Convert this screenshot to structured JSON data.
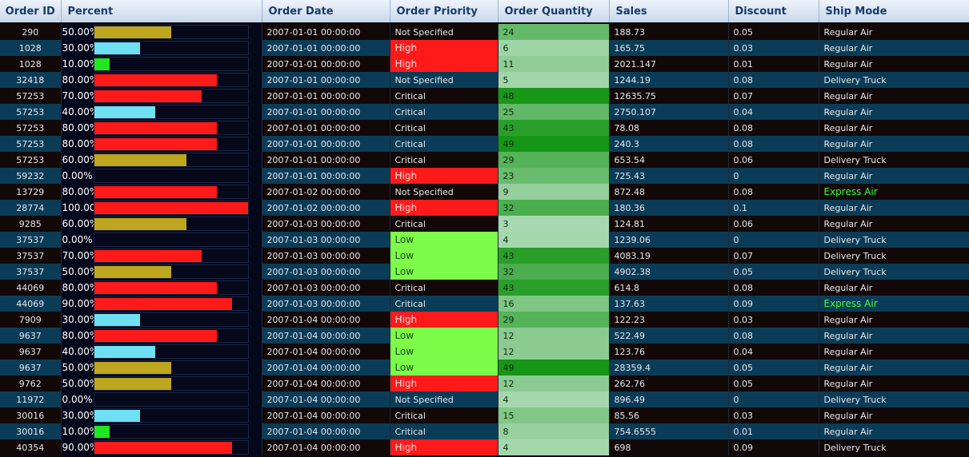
{
  "columns": {
    "order_id": "Order ID",
    "percent": "Percent",
    "order_date": "Order Date",
    "order_priority": "Order Priority",
    "order_quantity": "Order Quantity",
    "sales": "Sales",
    "discount": "Discount",
    "ship_mode": "Ship Mode"
  },
  "bar_colors": {
    "low": "#6ee0f2",
    "green": "#22e622",
    "mid": "#bfa61f",
    "high": "#ff1a1a"
  },
  "priority_colors": {
    "High": "#ff1a1a",
    "Low": "#7cfc48"
  },
  "rows": [
    {
      "id": "290",
      "pct": "50.00%",
      "pct_value": 0.5,
      "date": "2007-01-01 00:00:00",
      "priority": "Not Specified",
      "qty": "24",
      "sales": "188.73",
      "discount": "0.05",
      "ship": "Regular Air"
    },
    {
      "id": "1028",
      "pct": "30.00%",
      "pct_value": 0.3,
      "date": "2007-01-01 00:00:00",
      "priority": "High",
      "qty": "6",
      "sales": "165.75",
      "discount": "0.03",
      "ship": "Regular Air"
    },
    {
      "id": "1028",
      "pct": "10.00%",
      "pct_value": 0.1,
      "date": "2007-01-01 00:00:00",
      "priority": "High",
      "qty": "11",
      "sales": "2021.147",
      "discount": "0.01",
      "ship": "Regular Air"
    },
    {
      "id": "32418",
      "pct": "80.00%",
      "pct_value": 0.8,
      "date": "2007-01-01 00:00:00",
      "priority": "Not Specified",
      "qty": "5",
      "sales": "1244.19",
      "discount": "0.08",
      "ship": "Delivery Truck"
    },
    {
      "id": "57253",
      "pct": "70.00%",
      "pct_value": 0.7,
      "date": "2007-01-01 00:00:00",
      "priority": "Critical",
      "qty": "48",
      "sales": "12635.75",
      "discount": "0.07",
      "ship": "Regular Air"
    },
    {
      "id": "57253",
      "pct": "40.00%",
      "pct_value": 0.4,
      "date": "2007-01-01 00:00:00",
      "priority": "Critical",
      "qty": "25",
      "sales": "2750.107",
      "discount": "0.04",
      "ship": "Regular Air"
    },
    {
      "id": "57253",
      "pct": "80.00%",
      "pct_value": 0.8,
      "date": "2007-01-01 00:00:00",
      "priority": "Critical",
      "qty": "43",
      "sales": "78.08",
      "discount": "0.08",
      "ship": "Regular Air"
    },
    {
      "id": "57253",
      "pct": "80.00%",
      "pct_value": 0.8,
      "date": "2007-01-01 00:00:00",
      "priority": "Critical",
      "qty": "49",
      "sales": "240.3",
      "discount": "0.08",
      "ship": "Regular Air"
    },
    {
      "id": "57253",
      "pct": "60.00%",
      "pct_value": 0.6,
      "date": "2007-01-01 00:00:00",
      "priority": "Critical",
      "qty": "29",
      "sales": "653.54",
      "discount": "0.06",
      "ship": "Delivery Truck"
    },
    {
      "id": "59232",
      "pct": "0.00%",
      "pct_value": 0.0,
      "date": "2007-01-01 00:00:00",
      "priority": "High",
      "qty": "23",
      "sales": "725.43",
      "discount": "0",
      "ship": "Regular Air"
    },
    {
      "id": "13729",
      "pct": "80.00%",
      "pct_value": 0.8,
      "date": "2007-01-02 00:00:00",
      "priority": "Not Specified",
      "qty": "9",
      "sales": "872.48",
      "discount": "0.08",
      "ship": "Express Air"
    },
    {
      "id": "28774",
      "pct": "100.00%",
      "pct_value": 1.0,
      "date": "2007-01-02 00:00:00",
      "priority": "High",
      "qty": "32",
      "sales": "180.36",
      "discount": "0.1",
      "ship": "Regular Air"
    },
    {
      "id": "9285",
      "pct": "60.00%",
      "pct_value": 0.6,
      "date": "2007-01-03 00:00:00",
      "priority": "Critical",
      "qty": "3",
      "sales": "124.81",
      "discount": "0.06",
      "ship": "Regular Air"
    },
    {
      "id": "37537",
      "pct": "0.00%",
      "pct_value": 0.0,
      "date": "2007-01-03 00:00:00",
      "priority": "Low",
      "qty": "4",
      "sales": "1239.06",
      "discount": "0",
      "ship": "Delivery Truck"
    },
    {
      "id": "37537",
      "pct": "70.00%",
      "pct_value": 0.7,
      "date": "2007-01-03 00:00:00",
      "priority": "Low",
      "qty": "43",
      "sales": "4083.19",
      "discount": "0.07",
      "ship": "Delivery Truck"
    },
    {
      "id": "37537",
      "pct": "50.00%",
      "pct_value": 0.5,
      "date": "2007-01-03 00:00:00",
      "priority": "Low",
      "qty": "32",
      "sales": "4902.38",
      "discount": "0.05",
      "ship": "Delivery Truck"
    },
    {
      "id": "44069",
      "pct": "80.00%",
      "pct_value": 0.8,
      "date": "2007-01-03 00:00:00",
      "priority": "Critical",
      "qty": "43",
      "sales": "614.8",
      "discount": "0.08",
      "ship": "Regular Air"
    },
    {
      "id": "44069",
      "pct": "90.00%",
      "pct_value": 0.9,
      "date": "2007-01-03 00:00:00",
      "priority": "Critical",
      "qty": "16",
      "sales": "137.63",
      "discount": "0.09",
      "ship": "Express Air"
    },
    {
      "id": "7909",
      "pct": "30.00%",
      "pct_value": 0.3,
      "date": "2007-01-04 00:00:00",
      "priority": "High",
      "qty": "29",
      "sales": "122.23",
      "discount": "0.03",
      "ship": "Regular Air"
    },
    {
      "id": "9637",
      "pct": "80.00%",
      "pct_value": 0.8,
      "date": "2007-01-04 00:00:00",
      "priority": "Low",
      "qty": "12",
      "sales": "522.49",
      "discount": "0.08",
      "ship": "Regular Air"
    },
    {
      "id": "9637",
      "pct": "40.00%",
      "pct_value": 0.4,
      "date": "2007-01-04 00:00:00",
      "priority": "Low",
      "qty": "12",
      "sales": "123.76",
      "discount": "0.04",
      "ship": "Regular Air"
    },
    {
      "id": "9637",
      "pct": "50.00%",
      "pct_value": 0.5,
      "date": "2007-01-04 00:00:00",
      "priority": "Low",
      "qty": "49",
      "sales": "28359.4",
      "discount": "0.05",
      "ship": "Regular Air"
    },
    {
      "id": "9762",
      "pct": "50.00%",
      "pct_value": 0.5,
      "date": "2007-01-04 00:00:00",
      "priority": "High",
      "qty": "12",
      "sales": "262.76",
      "discount": "0.05",
      "ship": "Regular Air"
    },
    {
      "id": "11972",
      "pct": "0.00%",
      "pct_value": 0.0,
      "date": "2007-01-04 00:00:00",
      "priority": "Not Specified",
      "qty": "4",
      "sales": "896.49",
      "discount": "0",
      "ship": "Delivery Truck"
    },
    {
      "id": "30016",
      "pct": "30.00%",
      "pct_value": 0.3,
      "date": "2007-01-04 00:00:00",
      "priority": "Critical",
      "qty": "15",
      "sales": "85.56",
      "discount": "0.03",
      "ship": "Regular Air"
    },
    {
      "id": "30016",
      "pct": "10.00%",
      "pct_value": 0.1,
      "date": "2007-01-04 00:00:00",
      "priority": "Critical",
      "qty": "8",
      "sales": "754.6555",
      "discount": "0.01",
      "ship": "Regular Air"
    },
    {
      "id": "40354",
      "pct": "90.00%",
      "pct_value": 0.9,
      "date": "2007-01-04 00:00:00",
      "priority": "High",
      "qty": "4",
      "sales": "698",
      "discount": "0.09",
      "ship": "Delivery Truck"
    }
  ]
}
